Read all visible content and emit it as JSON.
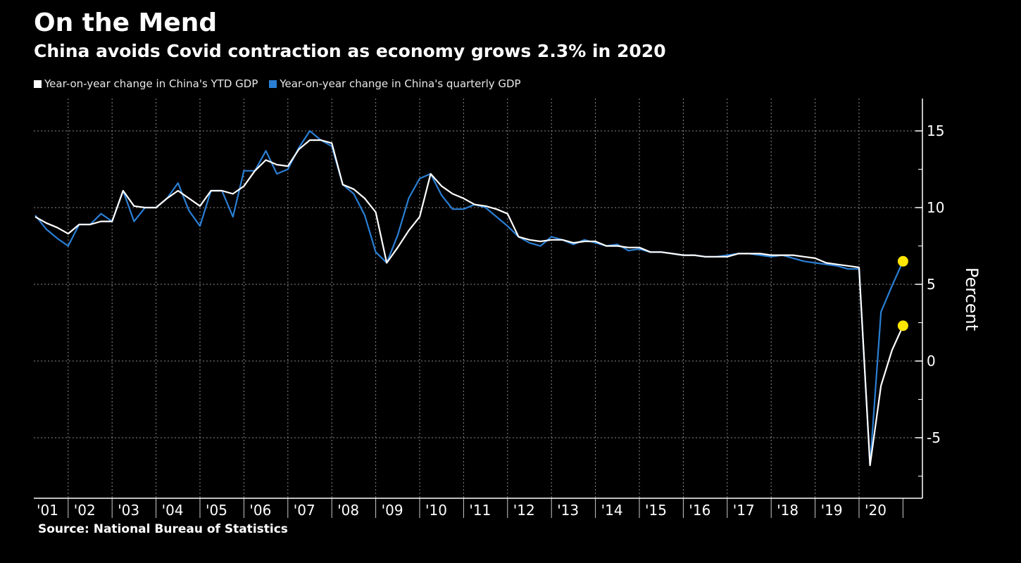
{
  "title": "On the Mend",
  "subtitle": "China avoids Covid contraction as economy grows 2.3% in 2020",
  "source": "Source: National Bureau of Statistics",
  "chart_data": {
    "type": "line",
    "title": "On the Mend",
    "subtitle": "China avoids Covid contraction as economy grows 2.3% in 2020",
    "ylabel": "Percent",
    "xlabel": "",
    "ylim": [
      -9,
      17
    ],
    "yticks": [
      15,
      10,
      5,
      0,
      -5
    ],
    "grid": true,
    "legend_placement": "top-left",
    "x_tick_labels": [
      "'01",
      "'02",
      "'03",
      "'04",
      "'05",
      "'06",
      "'07",
      "'08",
      "'09",
      "'10",
      "'11",
      "'12",
      "'13",
      "'14",
      "'15",
      "'16",
      "'17",
      "'18",
      "'19",
      "'20"
    ],
    "x_start": "2001 Q1",
    "x_frequency": "quarterly",
    "series": [
      {
        "name": "Year-on-year change in China's YTD GDP",
        "color": "#ffffff",
        "values": [
          9.4,
          9.0,
          8.7,
          8.3,
          8.9,
          8.9,
          9.1,
          9.1,
          11.1,
          10.1,
          10.0,
          10.0,
          10.6,
          11.1,
          10.6,
          10.1,
          11.1,
          11.1,
          10.9,
          11.4,
          12.4,
          13.1,
          12.8,
          12.7,
          13.8,
          14.4,
          14.4,
          14.2,
          11.5,
          11.2,
          10.6,
          9.7,
          6.4,
          7.4,
          8.5,
          9.4,
          12.2,
          11.4,
          10.9,
          10.6,
          10.2,
          10.1,
          9.9,
          9.6,
          8.1,
          7.9,
          7.8,
          7.9,
          7.9,
          7.7,
          7.8,
          7.8,
          7.5,
          7.5,
          7.4,
          7.4,
          7.1,
          7.1,
          7.0,
          6.9,
          6.9,
          6.8,
          6.8,
          6.8,
          7.0,
          7.0,
          7.0,
          6.9,
          6.9,
          6.9,
          6.8,
          6.7,
          6.4,
          6.3,
          6.2,
          6.1,
          -6.8,
          -1.6,
          0.7,
          2.3
        ]
      },
      {
        "name": "Year-on-year change in China's quarterly GDP",
        "color": "#2a7fd4",
        "values": [
          9.5,
          8.6,
          8.0,
          7.5,
          8.9,
          8.9,
          9.6,
          9.1,
          11.1,
          9.1,
          10.0,
          10.0,
          10.6,
          11.6,
          9.8,
          8.8,
          11.1,
          11.1,
          9.4,
          12.4,
          12.4,
          13.7,
          12.2,
          12.5,
          13.9,
          15.0,
          14.4,
          14.0,
          11.5,
          10.9,
          9.5,
          7.1,
          6.4,
          8.2,
          10.6,
          11.9,
          12.2,
          10.8,
          9.9,
          9.9,
          10.2,
          10.0,
          9.4,
          8.8,
          8.1,
          7.7,
          7.5,
          8.1,
          7.9,
          7.6,
          7.9,
          7.7,
          7.5,
          7.6,
          7.2,
          7.3,
          7.1,
          7.1,
          7.0,
          6.9,
          6.9,
          6.8,
          6.8,
          6.9,
          7.0,
          7.0,
          6.9,
          6.8,
          6.9,
          6.7,
          6.5,
          6.4,
          6.3,
          6.2,
          6.0,
          6.0,
          -6.8,
          3.2,
          4.9,
          6.5
        ]
      }
    ],
    "end_marker_color": "#ffe600"
  }
}
